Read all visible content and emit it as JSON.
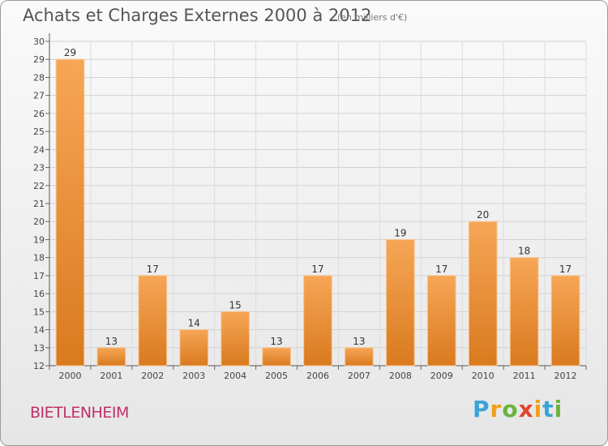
{
  "header": {
    "title": "Achats et Charges Externes 2000 à 2012",
    "subtitle": "(en milliers d'€)"
  },
  "footer": {
    "commune": "BIETLENHEIM",
    "logo_letters": [
      "P",
      "r",
      "o",
      "x",
      "i",
      "t",
      "i"
    ],
    "logo_colors": [
      "#3aa3d8",
      "#f0a019",
      "#6cb33f",
      "#e2452c",
      "#f0a019",
      "#3aa3d8",
      "#6cb33f"
    ]
  },
  "chart_data": {
    "type": "bar",
    "categories": [
      "2000",
      "2001",
      "2002",
      "2003",
      "2004",
      "2005",
      "2006",
      "2007",
      "2008",
      "2009",
      "2010",
      "2011",
      "2012"
    ],
    "values": [
      29,
      13,
      17,
      14,
      15,
      13,
      17,
      13,
      19,
      17,
      20,
      18,
      17
    ],
    "ylim": [
      12,
      30
    ],
    "yticks": [
      12,
      13,
      14,
      15,
      16,
      17,
      18,
      19,
      20,
      21,
      22,
      23,
      24,
      25,
      26,
      27,
      28,
      29,
      30
    ],
    "grid": true,
    "bar_color_top": "#f6a656",
    "bar_color_bottom": "#d97a1f",
    "show_value_labels": true
  }
}
